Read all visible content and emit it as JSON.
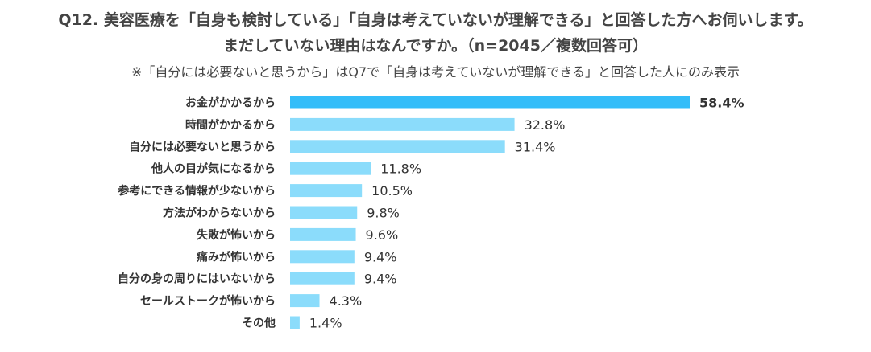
{
  "header": {
    "line1": "Q12. 美容医療を「自身も検討している」「自身は考えていないが理解できる」と回答した方へお伺いします。",
    "line2": "まだしていない理由はなんですか。（n=2045／複数回答可）",
    "note": "※「自分には必要ないと思うから」はQ7で「自身は考えていないが理解できる」と回答した人にのみ表示"
  },
  "colors": {
    "highlight_bar": "#33bdf9",
    "bar": "#8bdcfb",
    "text": "#333333"
  },
  "chart_data": {
    "type": "bar",
    "orientation": "horizontal",
    "title": "Q12. 美容医療を「自身も検討している」「自身は考えていないが理解できる」と回答した方へお伺いします。まだしていない理由はなんですか。（n=2045／複数回答可）",
    "xlabel": "",
    "ylabel": "",
    "unit": "%",
    "grid": false,
    "categories": [
      "お金がかかるから",
      "時間がかかるから",
      "自分には必要ないと思うから",
      "他人の目が気になるから",
      "参考にできる情報が少ないから",
      "方法がわからないから",
      "失敗が怖いから",
      "痛みが怖いから",
      "自分の身の周りにはいないから",
      "セールストークが怖いから",
      "その他"
    ],
    "values": [
      58.4,
      32.8,
      31.4,
      11.8,
      10.5,
      9.8,
      9.6,
      9.4,
      9.4,
      4.3,
      1.4
    ],
    "value_labels": [
      "58.4%",
      "32.8%",
      "31.4%",
      "11.8%",
      "10.5%",
      "9.8%",
      "9.6%",
      "9.4%",
      "9.4%",
      "4.3%",
      "1.4%"
    ],
    "highlight_index": 0
  }
}
